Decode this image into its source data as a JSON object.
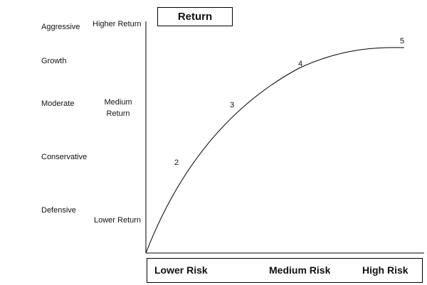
{
  "title": "Return",
  "profiles": [
    "Aggressive",
    "Growth",
    "Moderate",
    "Conservative",
    "Defensive"
  ],
  "return_levels": {
    "high": "Higher Return",
    "medium_line1": "Medium",
    "medium_line2": "Return",
    "low": "Lower Return"
  },
  "risk_levels": {
    "low": "Lower Risk",
    "medium": "Medium Risk",
    "high": "High Risk"
  },
  "curve_points": [
    "2",
    "3",
    "4",
    "5"
  ]
}
